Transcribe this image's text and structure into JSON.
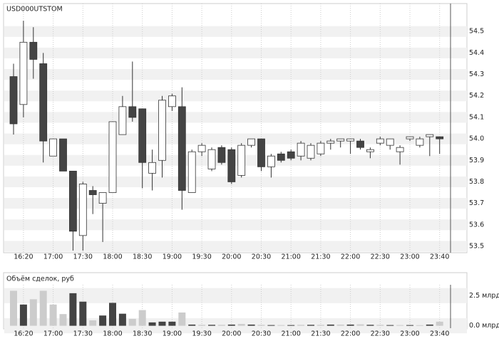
{
  "chart_data": [
    {
      "type": "candlestick",
      "title": "USD000UTSTOM",
      "open": [
        54.29,
        54.16,
        54.45,
        54.35,
        53.92,
        54.0,
        53.85,
        53.55,
        53.76,
        53.7,
        53.75,
        54.02,
        54.15,
        54.14,
        53.84,
        53.9,
        54.15,
        54.15,
        53.75,
        53.94,
        53.86,
        53.96,
        53.95,
        53.83,
        53.97,
        54.0,
        53.87,
        53.93,
        53.94,
        53.92,
        53.91,
        53.93,
        53.98,
        53.99,
        53.99,
        53.99,
        53.94,
        53.98,
        53.97,
        53.94,
        54.0,
        53.97,
        54.01,
        54.01
      ],
      "high": [
        54.35,
        54.55,
        54.52,
        54.4,
        54.0,
        54.0,
        53.85,
        53.8,
        53.78,
        53.75,
        54.08,
        54.2,
        54.36,
        54.14,
        53.95,
        54.2,
        54.21,
        54.24,
        53.95,
        53.98,
        53.96,
        53.97,
        53.96,
        53.98,
        54.0,
        54.0,
        53.93,
        53.94,
        53.95,
        53.99,
        53.98,
        53.99,
        54.0,
        54.0,
        54.0,
        54.0,
        53.96,
        54.01,
        54.0,
        53.97,
        54.01,
        54.01,
        54.02,
        54.01
      ],
      "low": [
        54.02,
        54.1,
        54.28,
        53.89,
        53.92,
        53.85,
        53.48,
        53.48,
        53.65,
        53.52,
        53.75,
        54.02,
        54.08,
        53.77,
        53.76,
        53.82,
        54.13,
        53.67,
        53.75,
        53.92,
        53.85,
        53.88,
        53.79,
        53.82,
        53.96,
        53.85,
        53.82,
        53.89,
        53.9,
        53.9,
        53.9,
        53.92,
        53.95,
        53.96,
        53.93,
        53.95,
        53.91,
        53.97,
        53.95,
        53.88,
        53.99,
        53.96,
        53.92,
        53.93
      ],
      "close": [
        54.07,
        54.45,
        54.37,
        53.99,
        54.0,
        53.85,
        53.57,
        53.79,
        53.74,
        53.75,
        54.08,
        54.15,
        54.1,
        53.89,
        53.89,
        54.18,
        54.2,
        53.76,
        53.94,
        53.97,
        53.95,
        53.89,
        53.8,
        53.97,
        54.0,
        53.87,
        53.92,
        53.9,
        53.91,
        53.98,
        53.97,
        53.98,
        53.99,
        54.0,
        54.0,
        53.96,
        53.95,
        54.0,
        54.0,
        53.96,
        54.01,
        54.0,
        54.02,
        54.0
      ],
      "up_color": "#ffffff",
      "down_color": "#444444",
      "ylim": [
        53.47,
        54.63
      ],
      "yticks": [
        53.5,
        53.6,
        53.7,
        53.8,
        53.9,
        {
          "value": 54,
          "label": "54.0"
        },
        54.1,
        54.2,
        54.3,
        54.4,
        54.5
      ],
      "xticks": [
        {
          "value": 1,
          "label": "16:20"
        },
        {
          "value": 4,
          "label": "17:00"
        },
        {
          "value": 7,
          "label": "17:30"
        },
        {
          "value": 10,
          "label": "18:00"
        },
        {
          "value": 13,
          "label": "18:30"
        },
        {
          "value": 16,
          "label": "19:00"
        },
        {
          "value": 19,
          "label": "19:30"
        },
        {
          "value": 22,
          "label": "20:00"
        },
        {
          "value": 25,
          "label": "20:30"
        },
        {
          "value": 28,
          "label": "21:00"
        },
        {
          "value": 31,
          "label": "21:30"
        },
        {
          "value": 34,
          "label": "22:00"
        },
        {
          "value": 37,
          "label": "22:30"
        },
        {
          "value": 40,
          "label": "23:00"
        },
        {
          "value": 43,
          "label": "23:40"
        }
      ],
      "grid": true
    },
    {
      "type": "bar",
      "title": "Объём сделок, руб",
      "values": [
        2.9,
        1.76,
        2.2,
        2.9,
        1.76,
        0.97,
        2.7,
        2.0,
        0.45,
        0.85,
        1.9,
        1.0,
        0.57,
        1.3,
        0.28,
        0.34,
        0.34,
        1.1,
        0.1,
        0.08,
        0.08,
        0.08,
        0.1,
        0.15,
        0.1,
        0.08,
        0.06,
        0.06,
        0.06,
        0.08,
        0.08,
        0.08,
        0.1,
        0.1,
        0.1,
        0.12,
        0.08,
        0.08,
        0.06,
        0.06,
        0.06,
        0.05,
        0.1,
        0.34
      ],
      "colors": [
        "#cccccc",
        "#444444",
        "#cccccc",
        "#cccccc",
        "#cccccc",
        "#cccccc",
        "#444444",
        "#444444",
        "#cccccc",
        "#444444",
        "#444444",
        "#444444",
        "#cccccc",
        "#cccccc",
        "#444444",
        "#444444",
        "#444444",
        "#cccccc",
        "#444444",
        "#cccccc",
        "#444444",
        "#cccccc",
        "#444444",
        "#cccccc",
        "#444444",
        "#cccccc",
        "#444444",
        "#cccccc",
        "#444444",
        "#cccccc",
        "#444444",
        "#cccccc",
        "#444444",
        "#cccccc",
        "#444444",
        "#cccccc",
        "#444444",
        "#cccccc",
        "#444444",
        "#cccccc",
        "#444444",
        "#cccccc",
        "#444444",
        "#cccccc"
      ],
      "ylim": [
        -0.2,
        3.4
      ],
      "yticks": [
        {
          "value": 2.5,
          "label": "2.5 млрд"
        },
        {
          "value": 0,
          "label": "0.0 млрд"
        }
      ],
      "xticks": [
        {
          "value": 1,
          "label": "16:20"
        },
        {
          "value": 4,
          "label": "17:00"
        },
        {
          "value": 7,
          "label": "17:30"
        },
        {
          "value": 10,
          "label": "18:00"
        },
        {
          "value": 13,
          "label": "18:30"
        },
        {
          "value": 16,
          "label": "19:00"
        },
        {
          "value": 19,
          "label": "19:30"
        },
        {
          "value": 22,
          "label": "20:00"
        },
        {
          "value": 25,
          "label": "20:30"
        },
        {
          "value": 28,
          "label": "21:00"
        },
        {
          "value": 31,
          "label": "21:30"
        },
        {
          "value": 34,
          "label": "22:00"
        },
        {
          "value": 37,
          "label": "22:30"
        },
        {
          "value": 40,
          "label": "23:00"
        },
        {
          "value": 43,
          "label": "23:40"
        }
      ],
      "grid": true
    }
  ]
}
